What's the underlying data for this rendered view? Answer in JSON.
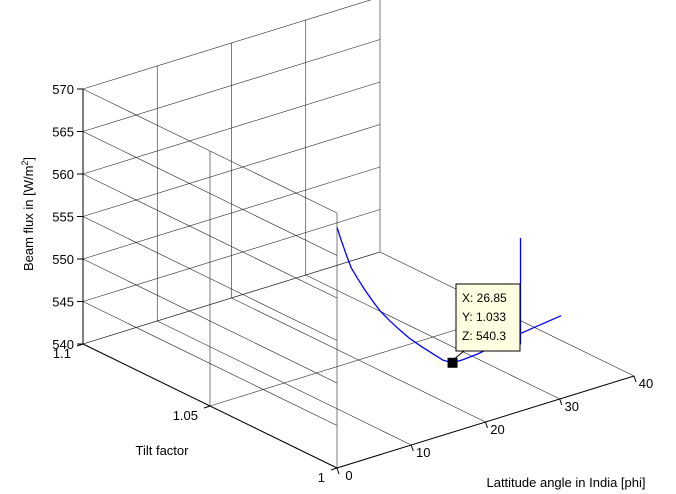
{
  "chart_data": {
    "type": "line",
    "title": "",
    "xlabel": "Lattitude angle in India [phi]",
    "ylabel": "Tilt factor",
    "zlabel_text": "Beam flux in [W/m",
    "zlabel_sup": "2",
    "zlabel_tail": "]",
    "xlim": [
      0,
      40
    ],
    "ylim": [
      1,
      1.1
    ],
    "zlim": [
      540,
      570
    ],
    "x_ticks": [
      "0",
      "10",
      "20",
      "30",
      "40"
    ],
    "y_ticks": [
      "1",
      "1.05",
      "1.1"
    ],
    "z_ticks": [
      "540",
      "545",
      "550",
      "555",
      "560",
      "565",
      "570"
    ],
    "grid": true,
    "series": [
      {
        "color": "#0000ff",
        "x": [
          0,
          2,
          4,
          6,
          8,
          10,
          12,
          14,
          16,
          18,
          20,
          22,
          24,
          25.5,
          26.85,
          28,
          29.5,
          31,
          32.5,
          34,
          36
        ],
        "y": [
          1.0,
          1.004,
          1.008,
          1.012,
          1.015,
          1.018,
          1.021,
          1.024,
          1.026,
          1.028,
          1.03,
          1.031,
          1.032,
          1.0328,
          1.033,
          1.0325,
          1.031,
          1.029,
          1.026,
          1.022,
          1.017
        ],
        "z": [
          568.3,
          565.5,
          562.8,
          560.2,
          557.8,
          555.5,
          553.3,
          551.2,
          549.2,
          547.3,
          545.5,
          543.8,
          542.2,
          541.0,
          540.3,
          540.4,
          540.9,
          541.7,
          542.8,
          544.1,
          545.7
        ]
      },
      {
        "color": "#0000ff",
        "x": [
          36,
          36
        ],
        "y": [
          1.033,
          1.033
        ],
        "z": [
          540,
          552.5
        ]
      }
    ],
    "datatip": {
      "x": 26.85,
      "y": 1.033,
      "z": 540.3,
      "lines": [
        "X: 26.85",
        "Y: 1.033",
        "Z: 540.3"
      ]
    }
  }
}
